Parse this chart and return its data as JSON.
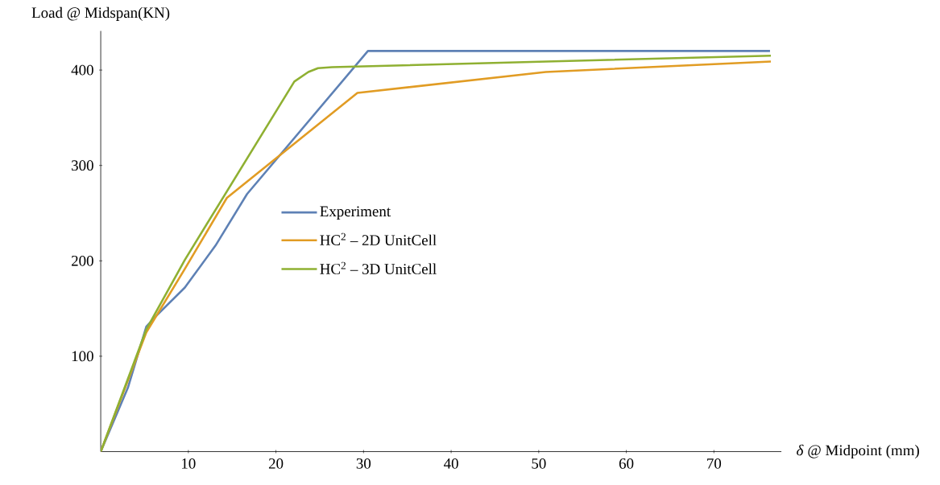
{
  "chart_data": {
    "type": "line",
    "xlabel": "*δ* @ Midpoint (mm)",
    "ylabel": "Load @ Midspan(KN)",
    "xlim": [
      0,
      77.7
    ],
    "ylim": [
      0,
      441
    ],
    "xticks": [
      10,
      20,
      30,
      40,
      50,
      60,
      70
    ],
    "yticks": [
      100,
      200,
      300,
      400
    ],
    "grid": false,
    "legend": "center",
    "marker": "none",
    "line_style": "solid",
    "series": [
      {
        "name": "Experiment",
        "color": "#5e81b5",
        "x": [
          0,
          3.1,
          5.2,
          6.3,
          9.6,
          13.1,
          16.7,
          30.5,
          76.4
        ],
        "values": [
          0,
          67,
          131,
          142,
          172,
          216,
          270,
          420,
          420
        ]
      },
      {
        "name": "HC$^{2}$ – 2D UnitCell",
        "color": "#e19c24",
        "x": [
          0,
          5.2,
          9.5,
          14.4,
          29.3,
          50.8,
          76.5
        ],
        "values": [
          0,
          125,
          190,
          266,
          376,
          398,
          409
        ]
      },
      {
        "name": "HC$^{2}$ – 3D UnitCell",
        "color": "#8fb032",
        "x": [
          0,
          5.2,
          9.6,
          22.1,
          23.7,
          24.8,
          26.4,
          50.9,
          76.5
        ],
        "values": [
          0,
          128,
          201,
          388,
          398,
          402,
          403,
          409,
          415
        ]
      }
    ]
  }
}
